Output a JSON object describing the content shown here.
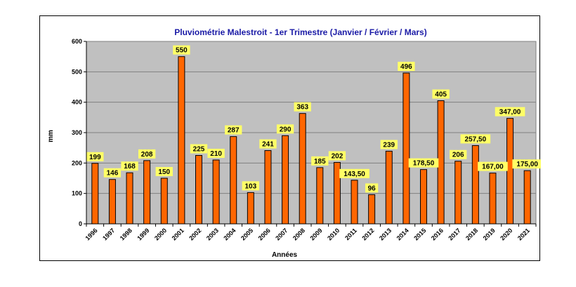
{
  "chart_data": {
    "type": "bar",
    "title": "Pluviométrie Malestroit - 1er Trimestre (Janvier / Février / Mars)",
    "xlabel": "Années",
    "ylabel": "mm",
    "ylim": [
      0,
      600
    ],
    "yticks": [
      "0",
      "100",
      "200",
      "300",
      "400",
      "500",
      "600"
    ],
    "grid": true,
    "legend": "none",
    "colors": {
      "bar": "#ff6600",
      "plot_bg": "#c0c0c0",
      "label_bg": "#ffff66",
      "title": "#1a1aa6"
    },
    "categories": [
      "1996",
      "1997",
      "1998",
      "1999",
      "2000",
      "2001",
      "2002",
      "2003",
      "2004",
      "2005",
      "2006",
      "2007",
      "2008",
      "2009",
      "2010",
      "2011",
      "2012",
      "2013",
      "2014",
      "2015",
      "2016",
      "2017",
      "2018",
      "2019",
      "2020",
      "2021"
    ],
    "values": [
      199,
      146,
      168,
      208,
      150,
      550,
      225,
      210,
      287,
      103,
      241,
      290,
      363,
      185,
      202,
      143.5,
      96,
      239,
      496,
      178.5,
      405,
      206,
      257.5,
      167,
      347,
      175
    ],
    "labels": [
      "199",
      "146",
      "168",
      "208",
      "150",
      "550",
      "225",
      "210",
      "287",
      "103",
      "241",
      "290",
      "363",
      "185",
      "202",
      "143,50",
      "96",
      "239",
      "496",
      "178,50",
      "405",
      "206",
      "257,50",
      "167,00",
      "347,00",
      "175,00"
    ]
  }
}
